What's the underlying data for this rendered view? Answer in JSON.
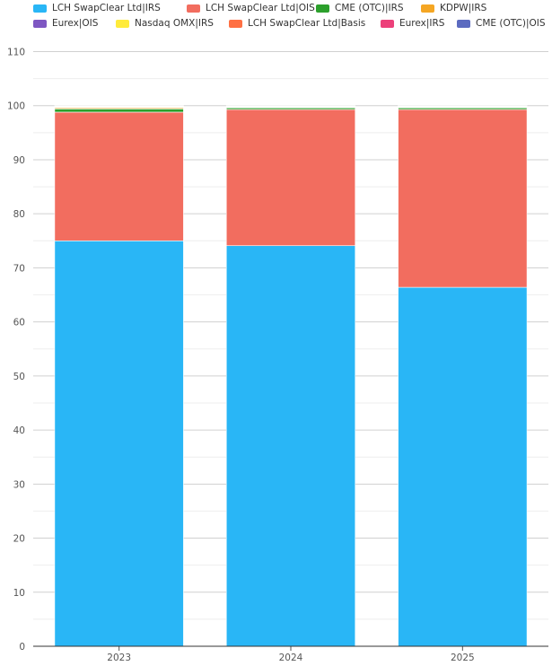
{
  "chart_data": {
    "type": "bar",
    "stacked": true,
    "categories": [
      "2023",
      "2024",
      "2025"
    ],
    "ylim": [
      0,
      110
    ],
    "yticks": [
      0,
      10,
      20,
      30,
      40,
      50,
      60,
      70,
      80,
      90,
      100,
      110
    ],
    "grid": true,
    "legend_placement": "top",
    "title": "",
    "xlabel": "",
    "ylabel": "",
    "series": [
      {
        "name": "LCH SwapClear Ltd|IRS",
        "color": "#29b6f6",
        "values": [
          75.0,
          74.1,
          66.4
        ]
      },
      {
        "name": "LCH SwapClear Ltd|OIS",
        "color": "#f26d5f",
        "values": [
          23.8,
          25.2,
          32.9
        ]
      },
      {
        "name": "CME (OTC)|IRS",
        "color": "#2ca02c",
        "values": [
          0.6,
          0.3,
          0.3
        ]
      },
      {
        "name": "KDPW|IRS",
        "color": "#f5a623",
        "values": [
          0.2,
          0.1,
          0.1
        ]
      },
      {
        "name": "Eurex|OIS",
        "color": "#7e57c2",
        "values": [
          0.1,
          0.1,
          0.1
        ]
      },
      {
        "name": "Nasdaq OMX|IRS",
        "color": "#ffeb3b",
        "values": [
          0.1,
          0.1,
          0.1
        ]
      },
      {
        "name": "LCH SwapClear Ltd|Basis",
        "color": "#ff7043",
        "values": [
          0.1,
          0.05,
          0.05
        ]
      },
      {
        "name": "Eurex|IRS",
        "color": "#ec407a",
        "values": [
          0.05,
          0.03,
          0.03
        ]
      },
      {
        "name": "CME (OTC)|OIS",
        "color": "#5c6bc0",
        "values": [
          0.05,
          0.02,
          0.02
        ]
      }
    ]
  }
}
